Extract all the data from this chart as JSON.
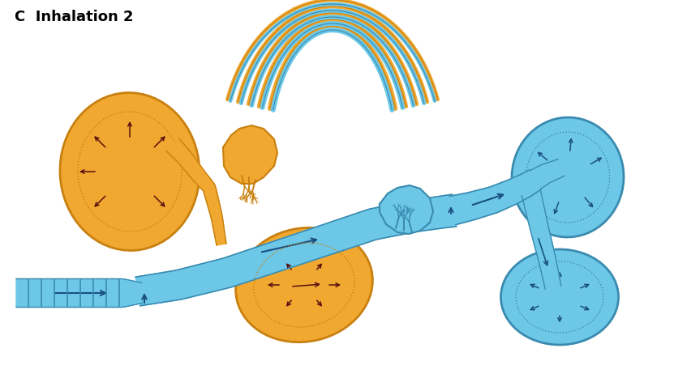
{
  "title": "C  Inhalation 2",
  "title_fontsize": 13,
  "bg_color": "#ffffff",
  "blue": "#6DC8E8",
  "blue_edge": "#3A8AAF",
  "orange": "#F0A830",
  "orange_edge": "#C88010",
  "arrow_blue": "#1A5080",
  "arrow_dark": "#5A1010",
  "fig_width": 8.31,
  "fig_height": 4.67,
  "dpi": 100
}
